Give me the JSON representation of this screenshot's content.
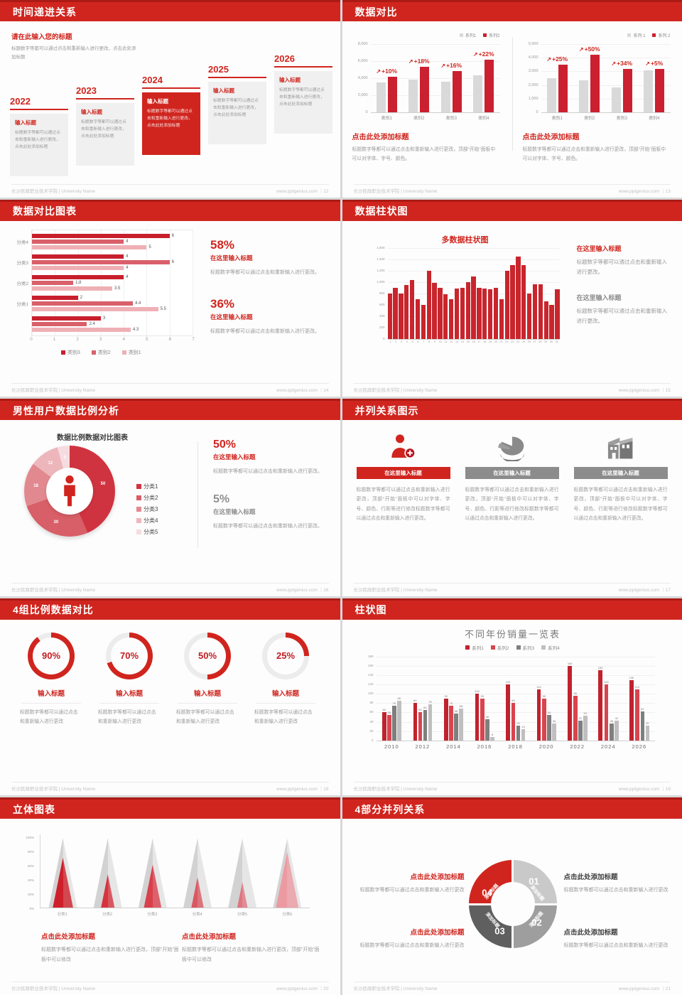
{
  "page": {
    "footer_left": "长沙民政职业技术学院 | University Name"
  },
  "slides": {
    "s1": {
      "title": "时间递进关系",
      "footer_right": "www.pptgenius.com ｜12",
      "intro_heading": "请在此输入您的标题",
      "intro_body": "标题数字等都可以通过点击和重新输入进行更改，点击此处添加标题",
      "items": [
        {
          "year": "2022",
          "heading": "输入标题",
          "body": "标题数字等都可以通过点击和重新输入进行更改，点击此处添加标题",
          "highlight": false
        },
        {
          "year": "2023",
          "heading": "输入标题",
          "body": "标题数字等都可以通过点击和重新输入进行更改，点击此处添加标题",
          "highlight": false
        },
        {
          "year": "2024",
          "heading": "输入标题",
          "body": "标题数字等都可以通过点击和重新输入进行更改，点击此处添加标题",
          "highlight": true
        },
        {
          "year": "2025",
          "heading": "输入标题",
          "body": "标题数字等都可以通过点击和重新输入进行更改，点击此处添加标题",
          "highlight": false
        },
        {
          "year": "2026",
          "heading": "输入标题",
          "body": "标题数字等都可以通过点击和重新输入进行更改，点击此处添加标题",
          "highlight": false
        }
      ]
    },
    "s2": {
      "title": "数据对比",
      "footer_right": "www.pptgenius.com ｜13",
      "panels": [
        {
          "heading": "点击此处添加标题",
          "body": "标题数字等都可以通过点击和重新输入进行更改，顶部“开始”面板中可以对字体、字号、颜色。"
        },
        {
          "heading": "点击此处添加标题",
          "body": "标题数字等都可以通过点击和重新输入进行更改，顶部“开始”面板中可以对字体、字号、颜色。"
        }
      ]
    },
    "s3": {
      "title": "数据对比图表",
      "footer_right": "www.pptgenius.com ｜14",
      "stats": [
        {
          "pct": "58%",
          "heading": "在这里输入标题",
          "body": "标题数字等都可以通过点击和重新输入进行更改。",
          "tone": "red"
        },
        {
          "pct": "36%",
          "heading": "在这里输入标题",
          "body": "标题数字等都可以通过点击和重新输入进行更改。",
          "tone": "red"
        }
      ]
    },
    "s4": {
      "title": "数据柱状图",
      "footer_right": "www.pptgenius.com ｜15",
      "blocks": [
        {
          "heading": "在这里输入标题",
          "body": "标题数字等都可以通过点击和重新输入进行更改。",
          "tone": "red"
        },
        {
          "heading": "在这里输入标题",
          "body": "标题数字等都可以通过点击和重新输入进行更改。",
          "tone": "gray"
        }
      ]
    },
    "s5": {
      "title": "男性用户数据比例分析",
      "footer_right": "www.pptgenius.com ｜16",
      "stats": [
        {
          "pct": "50%",
          "heading": "在这里输入标题",
          "body": "标题数字等都可以通过点击和重新输入进行更改。",
          "tone": "red"
        },
        {
          "pct": "5%",
          "heading": "在这里输入标题",
          "body": "标题数字等都可以通过点击和重新输入进行更改。",
          "tone": "gray"
        }
      ]
    },
    "s6": {
      "title": "并列关系图示",
      "footer_right": "www.pptgenius.com ｜17",
      "columns": [
        {
          "icon": "person-plus-icon",
          "banner": "在这里输入标题",
          "tone": "red",
          "body": "标题数字等都可以通过点击和重新输入进行更改，顶部“开始”面板中可以对字体、字号、颜色、行距等进行修改标题数字等都可以通过点击和重新输入进行更改。"
        },
        {
          "icon": "pie-3d-icon",
          "banner": "在这里输入标题",
          "tone": "gray",
          "body": "标题数字等都可以通过点击和重新输入进行更改，顶部“开始”面板中可以对字体、字号、颜色、行距等进行修改标题数字等都可以通过点击和重新输入进行更改。"
        },
        {
          "icon": "building-icon",
          "banner": "在这里输入标题",
          "tone": "gray",
          "body": "标题数字等都可以通过点击和重新输入进行更改，顶部“开始”面板中可以对字体、字号、颜色、行距等进行修改标题数字等都可以通过点击和重新输入进行更改。"
        }
      ]
    },
    "s7": {
      "title": "4组比例数据对比",
      "footer_right": "www.pptgenius.com ｜18",
      "ring_heading": "输入标题",
      "ring_body": "标题数字等都可以通过点击和重新输入进行更改"
    },
    "s8": {
      "title": "柱状图",
      "footer_right": "www.pptgenius.com ｜19"
    },
    "s9": {
      "title": "立体图表",
      "footer_right": "www.pptgenius.com ｜20",
      "blocks": [
        {
          "heading": "点击此处添加标题",
          "body": "标题数字等都可以通过点击和重新输入进行更改，顶部“开始”面板中可以修改"
        },
        {
          "heading": "点击此处添加标题",
          "body": "标题数字等都可以通过点击和重新输入进行更改，顶部“开始”面板中可以修改"
        }
      ]
    },
    "s10": {
      "title": "4部分并列关系",
      "footer_right": "www.pptgenius.com ｜21",
      "segments": [
        {
          "num": "01",
          "label": "添加标题",
          "color": "#c9c9c9"
        },
        {
          "num": "02",
          "label": "添加标题",
          "color": "#9e9e9e"
        },
        {
          "num": "03",
          "label": "添加标题",
          "color": "#5f5f5f"
        },
        {
          "num": "04",
          "label": "添加标题",
          "color": "#d0251e"
        }
      ],
      "blocks": [
        {
          "pos": "tl",
          "tone": "red",
          "heading": "点击此处添加标题",
          "body": "标题数字等都可以通过点击和重新输入进行更改"
        },
        {
          "pos": "tr",
          "tone": "dark",
          "heading": "点击此处添加标题",
          "body": "标题数字等都可以通过点击和重新输入进行更改"
        },
        {
          "pos": "bl",
          "tone": "red",
          "heading": "点击此处添加标题",
          "body": "标题数字等都可以通过点击和重新输入进行更改"
        },
        {
          "pos": "br",
          "tone": "dark",
          "heading": "点击此处添加标题",
          "body": "标题数字等都可以通过点击和重新输入进行更改"
        }
      ]
    }
  },
  "chart_data": [
    {
      "id": "compare-left",
      "type": "bar",
      "grid": true,
      "legend_pos": "top-right",
      "categories": [
        "类别1",
        "类别2",
        "类别3",
        "类别4"
      ],
      "series": [
        {
          "name": "系列1",
          "color": "#d9d9d9",
          "values": [
            3500,
            3800,
            3600,
            4300
          ]
        },
        {
          "name": "系列2",
          "color": "#cb2030",
          "values": [
            4200,
            5300,
            4800,
            6200
          ]
        }
      ],
      "growth_labels": [
        "+10%",
        "+18%",
        "+16%",
        "+22%"
      ],
      "ylim": [
        0,
        8000
      ],
      "ytick_step": 2000
    },
    {
      "id": "compare-right",
      "type": "bar",
      "grid": true,
      "legend_pos": "top-right",
      "categories": [
        "类别1",
        "类别2",
        "类别3",
        "类别4"
      ],
      "series": [
        {
          "name": "系列 1",
          "color": "#d9d9d9",
          "values": [
            2500,
            2350,
            1800,
            3050
          ]
        },
        {
          "name": "系列 2",
          "color": "#cb2030",
          "values": [
            3500,
            4200,
            3200,
            3200
          ]
        }
      ],
      "growth_labels": [
        "+25%",
        "+50%",
        "+34%",
        "+5%"
      ],
      "ylim": [
        0,
        5000
      ],
      "ytick_step": 1000
    },
    {
      "id": "hbar-compare",
      "type": "bar",
      "orientation": "horizontal",
      "groups": [
        {
          "label": "分类4",
          "values": [
            6,
            4,
            5
          ]
        },
        {
          "label": "分类3",
          "values": [
            4,
            6,
            4
          ]
        },
        {
          "label": "分类2",
          "values": [
            4,
            1.8,
            3.5
          ]
        },
        {
          "label": "分类1",
          "values": [
            2,
            4.4,
            5.5
          ]
        },
        {
          "label": "",
          "values": [
            3,
            2.4,
            4.3
          ]
        }
      ],
      "legend": [
        "类别3",
        "类别2",
        "类别1"
      ],
      "colors": [
        "#c81f2d",
        "#d9606a",
        "#efb0b5"
      ],
      "xlim": [
        0,
        7
      ],
      "xticks": [
        0,
        1,
        2,
        3,
        4,
        5,
        6,
        7
      ]
    },
    {
      "id": "multi-column",
      "type": "bar",
      "title": "多数据柱状图",
      "color": "#c8252c",
      "x": [
        1,
        2,
        3,
        4,
        5,
        6,
        7,
        8,
        9,
        10,
        11,
        12,
        13,
        14,
        15,
        16,
        17,
        18,
        19,
        20,
        21,
        22,
        23,
        24,
        25,
        26,
        27,
        28,
        29,
        30,
        31
      ],
      "values": [
        800,
        900,
        800,
        950,
        1030,
        700,
        600,
        1200,
        980,
        890,
        780,
        700,
        880,
        890,
        1000,
        1100,
        890,
        880,
        870,
        890,
        700,
        1200,
        1300,
        1450,
        1300,
        800,
        960,
        960,
        660,
        590,
        870
      ],
      "ylim": [
        0,
        1600
      ],
      "ytick_step": 200
    },
    {
      "id": "male-donut",
      "type": "pie",
      "title": "数据比例数据对比图表",
      "labels": [
        "分类1",
        "分类2",
        "分类3",
        "分类4",
        "分类5"
      ],
      "values": [
        50,
        30,
        18,
        12,
        5
      ],
      "colors": [
        "#d03340",
        "#d85e67",
        "#e28990",
        "#edb6bb",
        "#f6dce0"
      ],
      "center_icon": "male-person-icon"
    },
    {
      "id": "progress-rings",
      "type": "pie",
      "values": [
        90,
        70,
        50,
        25
      ],
      "labels": [
        "90%",
        "70%",
        "50%",
        "25%"
      ],
      "accent": "#d0251e",
      "track": "#ececec"
    },
    {
      "id": "year-sales",
      "type": "bar",
      "title": "不同年份销量一览表",
      "categories": [
        "2010",
        "2012",
        "2014",
        "2016",
        "2018",
        "2020",
        "2022",
        "2024",
        "2026"
      ],
      "series": [
        {
          "name": "系列1",
          "color": "#c0222e",
          "values": [
            60,
            80,
            90,
            100,
            120,
            110,
            160,
            150,
            130
          ]
        },
        {
          "name": "系列2",
          "color": "#d8454e",
          "values": [
            55,
            60,
            75,
            90,
            80,
            90,
            96,
            120,
            110
          ]
        },
        {
          "name": "系列3",
          "color": "#7f7f7f",
          "values": [
            75,
            65,
            58,
            46,
            32,
            54,
            42,
            36,
            62
          ]
        },
        {
          "name": "系列4",
          "color": "#bfbfbf",
          "values": [
            85,
            78,
            68,
            8,
            24,
            36,
            53,
            42,
            32
          ]
        }
      ],
      "ylim": [
        0,
        180
      ],
      "ytick_step": 20,
      "value_labels": true,
      "legend_pos": "top-center"
    },
    {
      "id": "pyramid-3d",
      "type": "bar",
      "categories": [
        "分类1",
        "分类2",
        "分类3",
        "分类4",
        "分类5",
        "分类6"
      ],
      "values": [
        72,
        48,
        62,
        44,
        37,
        80
      ],
      "fill_colors": [
        "#ce1f2b",
        "#d6333f",
        "#d8404b",
        "#d95862",
        "#df7680",
        "#ec9aa2"
      ],
      "ylim": [
        0,
        100
      ],
      "yticks": [
        "0%",
        "20%",
        "40%",
        "60%",
        "80%",
        "100%"
      ]
    }
  ]
}
